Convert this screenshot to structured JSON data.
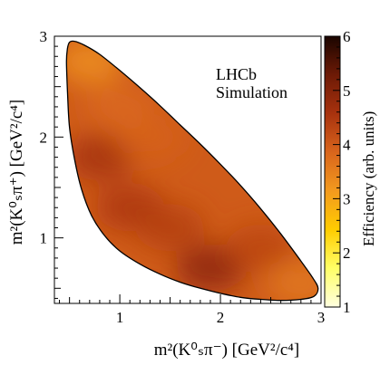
{
  "chart_data": {
    "type": "heatmap",
    "xlabel": "m²(K⁰ₛπ⁻) [GeV²/c⁴]",
    "ylabel": "m²(K⁰ₛπ⁺) [GeV²/c⁴]",
    "colorbar_label": "Efficiency (arb. units)",
    "annotation_lines": [
      "LHCb",
      "Simulation"
    ],
    "xlim": [
      0.35,
      3.0
    ],
    "ylim": [
      0.35,
      3.0
    ],
    "x_ticks": [
      1,
      2,
      3
    ],
    "x_tick_labels": [
      "1",
      "2",
      "3"
    ],
    "y_ticks": [
      1,
      2,
      3
    ],
    "y_tick_labels": [
      "1",
      "2",
      "3"
    ],
    "colorbar_range": [
      1,
      6
    ],
    "colorbar_ticks": [
      1,
      2,
      3,
      4,
      5,
      6
    ],
    "colorbar_tick_labels": [
      "1",
      "2",
      "3",
      "4",
      "5",
      "6"
    ],
    "colormap": [
      "#ffffe0",
      "#ffff66",
      "#ffcc00",
      "#f39a1e",
      "#d9651c",
      "#a8320e",
      "#6d1a06",
      "#1a0500"
    ],
    "boundary": [
      [
        0.5,
        2.94
      ],
      [
        0.55,
        2.95
      ],
      [
        0.65,
        2.91
      ],
      [
        0.8,
        2.82
      ],
      [
        1.0,
        2.66
      ],
      [
        1.2,
        2.49
      ],
      [
        1.4,
        2.31
      ],
      [
        1.6,
        2.12
      ],
      [
        1.8,
        1.93
      ],
      [
        2.0,
        1.73
      ],
      [
        2.2,
        1.52
      ],
      [
        2.4,
        1.29
      ],
      [
        2.6,
        1.04
      ],
      [
        2.8,
        0.77
      ],
      [
        2.92,
        0.6
      ],
      [
        2.97,
        0.5
      ],
      [
        2.93,
        0.42
      ],
      [
        2.8,
        0.39
      ],
      [
        2.6,
        0.38
      ],
      [
        2.4,
        0.39
      ],
      [
        2.2,
        0.41
      ],
      [
        2.0,
        0.45
      ],
      [
        1.8,
        0.5
      ],
      [
        1.6,
        0.56
      ],
      [
        1.4,
        0.64
      ],
      [
        1.2,
        0.74
      ],
      [
        1.0,
        0.87
      ],
      [
        0.85,
        1.02
      ],
      [
        0.72,
        1.22
      ],
      [
        0.62,
        1.48
      ],
      [
        0.55,
        1.78
      ],
      [
        0.5,
        2.1
      ],
      [
        0.48,
        2.45
      ],
      [
        0.47,
        2.75
      ],
      [
        0.48,
        2.88
      ]
    ],
    "efficiency_hotspots": [
      {
        "x": 0.7,
        "y": 2.75,
        "value": 3.3
      },
      {
        "x": 0.8,
        "y": 1.8,
        "value": 4.6
      },
      {
        "x": 1.1,
        "y": 1.3,
        "value": 4.5
      },
      {
        "x": 1.5,
        "y": 1.1,
        "value": 4.4
      },
      {
        "x": 1.9,
        "y": 0.7,
        "value": 4.9
      },
      {
        "x": 2.4,
        "y": 0.9,
        "value": 4.3
      },
      {
        "x": 2.8,
        "y": 0.55,
        "value": 3.6
      },
      {
        "x": 1.3,
        "y": 2.0,
        "value": 3.9
      },
      {
        "x": 1.0,
        "y": 2.3,
        "value": 3.8
      }
    ],
    "efficiency_baseline": 4.0
  }
}
